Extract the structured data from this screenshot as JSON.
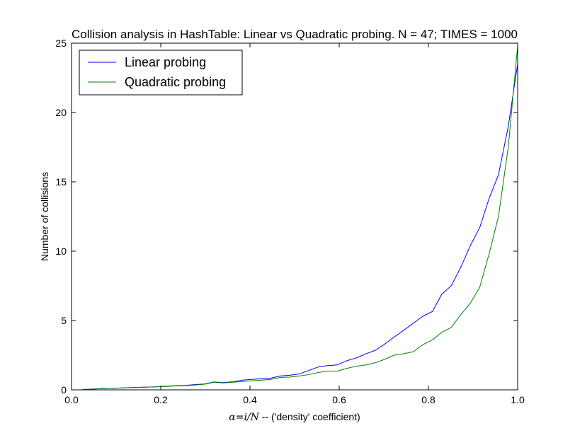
{
  "chart_data": {
    "type": "line",
    "title": "Collision analysis in HashTable: Linear vs Quadratic probing. N = 47; TIMES = 1000",
    "xlabel_math": "α=i/N",
    "xlabel_text": " -- ('density' coefficient)",
    "ylabel": "Number of collisions",
    "xlim": [
      0.0,
      1.0
    ],
    "ylim": [
      0,
      25
    ],
    "x_ticks": [
      0.0,
      0.2,
      0.4,
      0.6,
      0.8,
      1.0
    ],
    "x_tick_labels": [
      "0.0",
      "0.2",
      "0.4",
      "0.6",
      "0.8",
      "1.0"
    ],
    "y_ticks": [
      0,
      5,
      10,
      15,
      20,
      25
    ],
    "y_tick_labels": [
      "0",
      "5",
      "10",
      "15",
      "20",
      "25"
    ],
    "legend_position": "top-left",
    "grid": false,
    "x": [
      0.021,
      0.043,
      0.064,
      0.085,
      0.106,
      0.128,
      0.149,
      0.17,
      0.191,
      0.213,
      0.234,
      0.255,
      0.277,
      0.298,
      0.319,
      0.34,
      0.362,
      0.383,
      0.404,
      0.426,
      0.447,
      0.468,
      0.489,
      0.511,
      0.532,
      0.553,
      0.574,
      0.596,
      0.617,
      0.638,
      0.66,
      0.681,
      0.702,
      0.723,
      0.745,
      0.766,
      0.787,
      0.809,
      0.83,
      0.851,
      0.872,
      0.894,
      0.915,
      0.936,
      0.957,
      0.979,
      1.0
    ],
    "series": [
      {
        "name": "Linear probing",
        "color": "#0000ff",
        "values": [
          0.0,
          0.05,
          0.08,
          0.1,
          0.13,
          0.16,
          0.18,
          0.2,
          0.22,
          0.26,
          0.3,
          0.32,
          0.38,
          0.42,
          0.57,
          0.52,
          0.58,
          0.7,
          0.75,
          0.8,
          0.85,
          1.0,
          1.05,
          1.15,
          1.4,
          1.65,
          1.75,
          1.8,
          2.1,
          2.3,
          2.6,
          2.85,
          3.3,
          3.8,
          4.3,
          4.8,
          5.3,
          5.65,
          6.9,
          7.5,
          8.8,
          10.4,
          11.7,
          13.8,
          15.5,
          19.0,
          23.5
        ]
      },
      {
        "name": "Quadratic probing",
        "color": "#008000",
        "values": [
          0.0,
          0.05,
          0.08,
          0.1,
          0.13,
          0.16,
          0.18,
          0.2,
          0.22,
          0.24,
          0.28,
          0.3,
          0.35,
          0.4,
          0.55,
          0.5,
          0.55,
          0.6,
          0.65,
          0.7,
          0.75,
          0.9,
          0.92,
          1.0,
          1.1,
          1.25,
          1.35,
          1.35,
          1.55,
          1.7,
          1.8,
          1.95,
          2.2,
          2.5,
          2.6,
          2.75,
          3.25,
          3.6,
          4.15,
          4.5,
          5.4,
          6.25,
          7.4,
          9.8,
          12.5,
          17.5,
          24.8
        ]
      }
    ]
  }
}
